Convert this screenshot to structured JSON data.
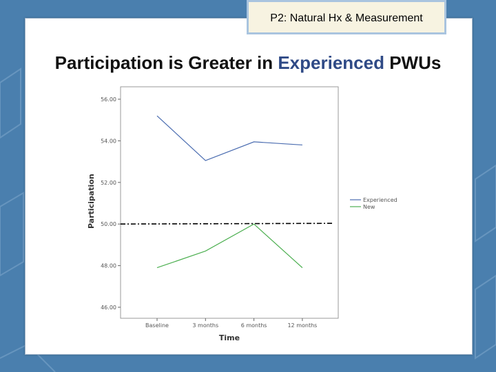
{
  "slide": {
    "tag": "P2: Natural Hx & Measurement",
    "title_prefix": "Participation is Greater in ",
    "title_highlight": "Experienced",
    "title_suffix": " PWUs"
  },
  "colors": {
    "background": "#4a7fae",
    "title_highlight": "#2f4a86",
    "experienced": "#4a6cb0",
    "new": "#4caf50",
    "reference_line": "#000000"
  },
  "chart_data": {
    "type": "line",
    "xlabel": "Time",
    "ylabel": "Participation",
    "categories": [
      "Baseline",
      "3 months",
      "6 months",
      "12 months"
    ],
    "ylim": [
      46,
      56
    ],
    "yticks": [
      "56.00",
      "54.00",
      "52.00",
      "50.00",
      "48.00",
      "46.00"
    ],
    "series": [
      {
        "name": "Experienced",
        "values": [
          55.2,
          53.05,
          53.95,
          53.8
        ],
        "color": "#4a6cb0"
      },
      {
        "name": "New",
        "values": [
          47.9,
          48.7,
          50.0,
          47.9
        ],
        "color": "#4caf50"
      }
    ],
    "reference_line": {
      "y": 50.0,
      "style": "dash-dot"
    },
    "legend": "right",
    "grid": false
  }
}
